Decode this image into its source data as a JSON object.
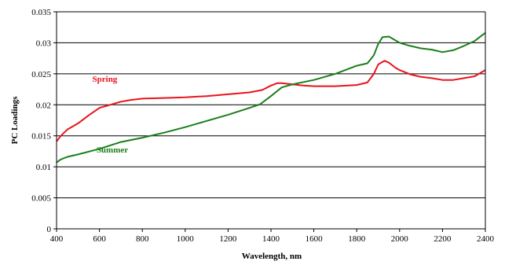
{
  "chart_data": {
    "type": "line",
    "title": "",
    "xlabel": "Wavelength, nm",
    "ylabel": "PC Loadings",
    "xlim": [
      400,
      2400
    ],
    "ylim": [
      0,
      0.035
    ],
    "x_ticks": [
      400,
      600,
      800,
      1000,
      1200,
      1400,
      1600,
      1800,
      2000,
      2200,
      2400
    ],
    "y_ticks": [
      0,
      0.005,
      0.01,
      0.015,
      0.02,
      0.025,
      0.03,
      0.035
    ],
    "y_tick_labels": [
      "0",
      "0.005",
      "0.01",
      "0.015",
      "0.02",
      "0.025",
      "0.03",
      "0.035"
    ],
    "grid": "horizontal",
    "series": [
      {
        "name": "Spring",
        "color": "#e8141c",
        "points": [
          [
            400,
            0.0141
          ],
          [
            420,
            0.015
          ],
          [
            450,
            0.016
          ],
          [
            500,
            0.017
          ],
          [
            550,
            0.0183
          ],
          [
            600,
            0.0195
          ],
          [
            650,
            0.02
          ],
          [
            700,
            0.0205
          ],
          [
            750,
            0.0208
          ],
          [
            800,
            0.021
          ],
          [
            900,
            0.0211
          ],
          [
            1000,
            0.0212
          ],
          [
            1100,
            0.0214
          ],
          [
            1200,
            0.0217
          ],
          [
            1300,
            0.022
          ],
          [
            1360,
            0.0224
          ],
          [
            1400,
            0.0231
          ],
          [
            1430,
            0.0235
          ],
          [
            1450,
            0.0235
          ],
          [
            1500,
            0.0233
          ],
          [
            1550,
            0.0231
          ],
          [
            1600,
            0.023
          ],
          [
            1700,
            0.023
          ],
          [
            1800,
            0.0232
          ],
          [
            1850,
            0.0236
          ],
          [
            1880,
            0.025
          ],
          [
            1900,
            0.0265
          ],
          [
            1930,
            0.0271
          ],
          [
            1950,
            0.0268
          ],
          [
            1980,
            0.026
          ],
          [
            2000,
            0.0256
          ],
          [
            2050,
            0.0249
          ],
          [
            2100,
            0.0245
          ],
          [
            2150,
            0.0243
          ],
          [
            2200,
            0.024
          ],
          [
            2250,
            0.024
          ],
          [
            2300,
            0.0243
          ],
          [
            2350,
            0.0246
          ],
          [
            2380,
            0.0252
          ],
          [
            2400,
            0.0256
          ]
        ]
      },
      {
        "name": "Summer",
        "color": "#1a7f1a",
        "points": [
          [
            400,
            0.0107
          ],
          [
            420,
            0.0112
          ],
          [
            450,
            0.0116
          ],
          [
            500,
            0.012
          ],
          [
            600,
            0.0129
          ],
          [
            700,
            0.014
          ],
          [
            800,
            0.0147
          ],
          [
            900,
            0.0155
          ],
          [
            1000,
            0.0164
          ],
          [
            1100,
            0.0174
          ],
          [
            1200,
            0.0184
          ],
          [
            1300,
            0.0195
          ],
          [
            1350,
            0.0201
          ],
          [
            1400,
            0.0214
          ],
          [
            1450,
            0.0228
          ],
          [
            1500,
            0.0233
          ],
          [
            1600,
            0.024
          ],
          [
            1700,
            0.025
          ],
          [
            1800,
            0.0263
          ],
          [
            1850,
            0.0267
          ],
          [
            1880,
            0.028
          ],
          [
            1900,
            0.0298
          ],
          [
            1920,
            0.0309
          ],
          [
            1950,
            0.031
          ],
          [
            2000,
            0.03
          ],
          [
            2050,
            0.0295
          ],
          [
            2100,
            0.0291
          ],
          [
            2150,
            0.0289
          ],
          [
            2200,
            0.0285
          ],
          [
            2250,
            0.0288
          ],
          [
            2300,
            0.0295
          ],
          [
            2350,
            0.0303
          ],
          [
            2380,
            0.0311
          ],
          [
            2400,
            0.0316
          ]
        ]
      }
    ],
    "annotations": [
      {
        "text": "Spring",
        "series": "Spring",
        "x": 625,
        "y": 0.0237
      },
      {
        "text": "Summer",
        "series": "Summer",
        "x": 660,
        "y": 0.0123
      }
    ]
  }
}
